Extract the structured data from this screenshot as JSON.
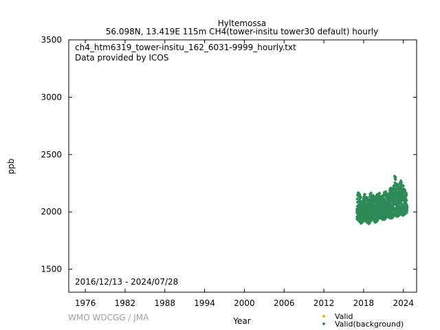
{
  "header": {
    "title": "Hyltemossa",
    "subtitle": "56.098N, 13.419E 115m    CH4(tower-insitu tower30 default) hourly"
  },
  "inside": {
    "filename": "ch4_htm6319_tower-insitu_162_6031-9999_hourly.txt",
    "provider": "Data provided by ICOS",
    "date_range": "2016/12/13 - 2024/07/28"
  },
  "footer": {
    "credit": "WMO WDCGG / JMA"
  },
  "colors": {
    "valid": "#d4b400",
    "background": "#2e8b57",
    "credit": "#a0a0a0"
  },
  "chart_data": {
    "type": "scatter",
    "xlabel": "Year",
    "ylabel": "ppb",
    "xlim": [
      1973.5,
      2026
    ],
    "ylim": [
      1300,
      3500
    ],
    "xticks": [
      1976,
      1982,
      1988,
      1994,
      2000,
      2006,
      2012,
      2018,
      2024
    ],
    "yticks": [
      1500,
      2000,
      2500,
      3000,
      3500
    ],
    "grid": false,
    "legend": {
      "position": "bottom-right",
      "entries": [
        "Valid",
        "Valid(background)"
      ]
    },
    "series": [
      {
        "name": "Valid(background)",
        "envelope": {
          "x": [
            2017.0,
            2017.3,
            2017.6,
            2017.9,
            2018.2,
            2018.5,
            2018.8,
            2019.1,
            2019.4,
            2019.7,
            2020.0,
            2020.3,
            2020.6,
            2020.9,
            2021.2,
            2021.5,
            2021.8,
            2022.1,
            2022.4,
            2022.7,
            2023.0,
            2023.3,
            2023.6,
            2023.9,
            2024.2,
            2024.55
          ],
          "low": [
            1935,
            1920,
            1900,
            1915,
            1930,
            1905,
            1895,
            1925,
            1940,
            1910,
            1915,
            1945,
            1950,
            1930,
            1935,
            1960,
            1955,
            1945,
            1950,
            1975,
            1960,
            1965,
            1985,
            1970,
            1975,
            1990
          ],
          "high": [
            2150,
            2185,
            2120,
            2110,
            2170,
            2140,
            2115,
            2190,
            2160,
            2130,
            2150,
            2180,
            2140,
            2155,
            2190,
            2170,
            2160,
            2230,
            2200,
            2340,
            2260,
            2230,
            2280,
            2250,
            2200,
            2150
          ]
        }
      }
    ]
  }
}
